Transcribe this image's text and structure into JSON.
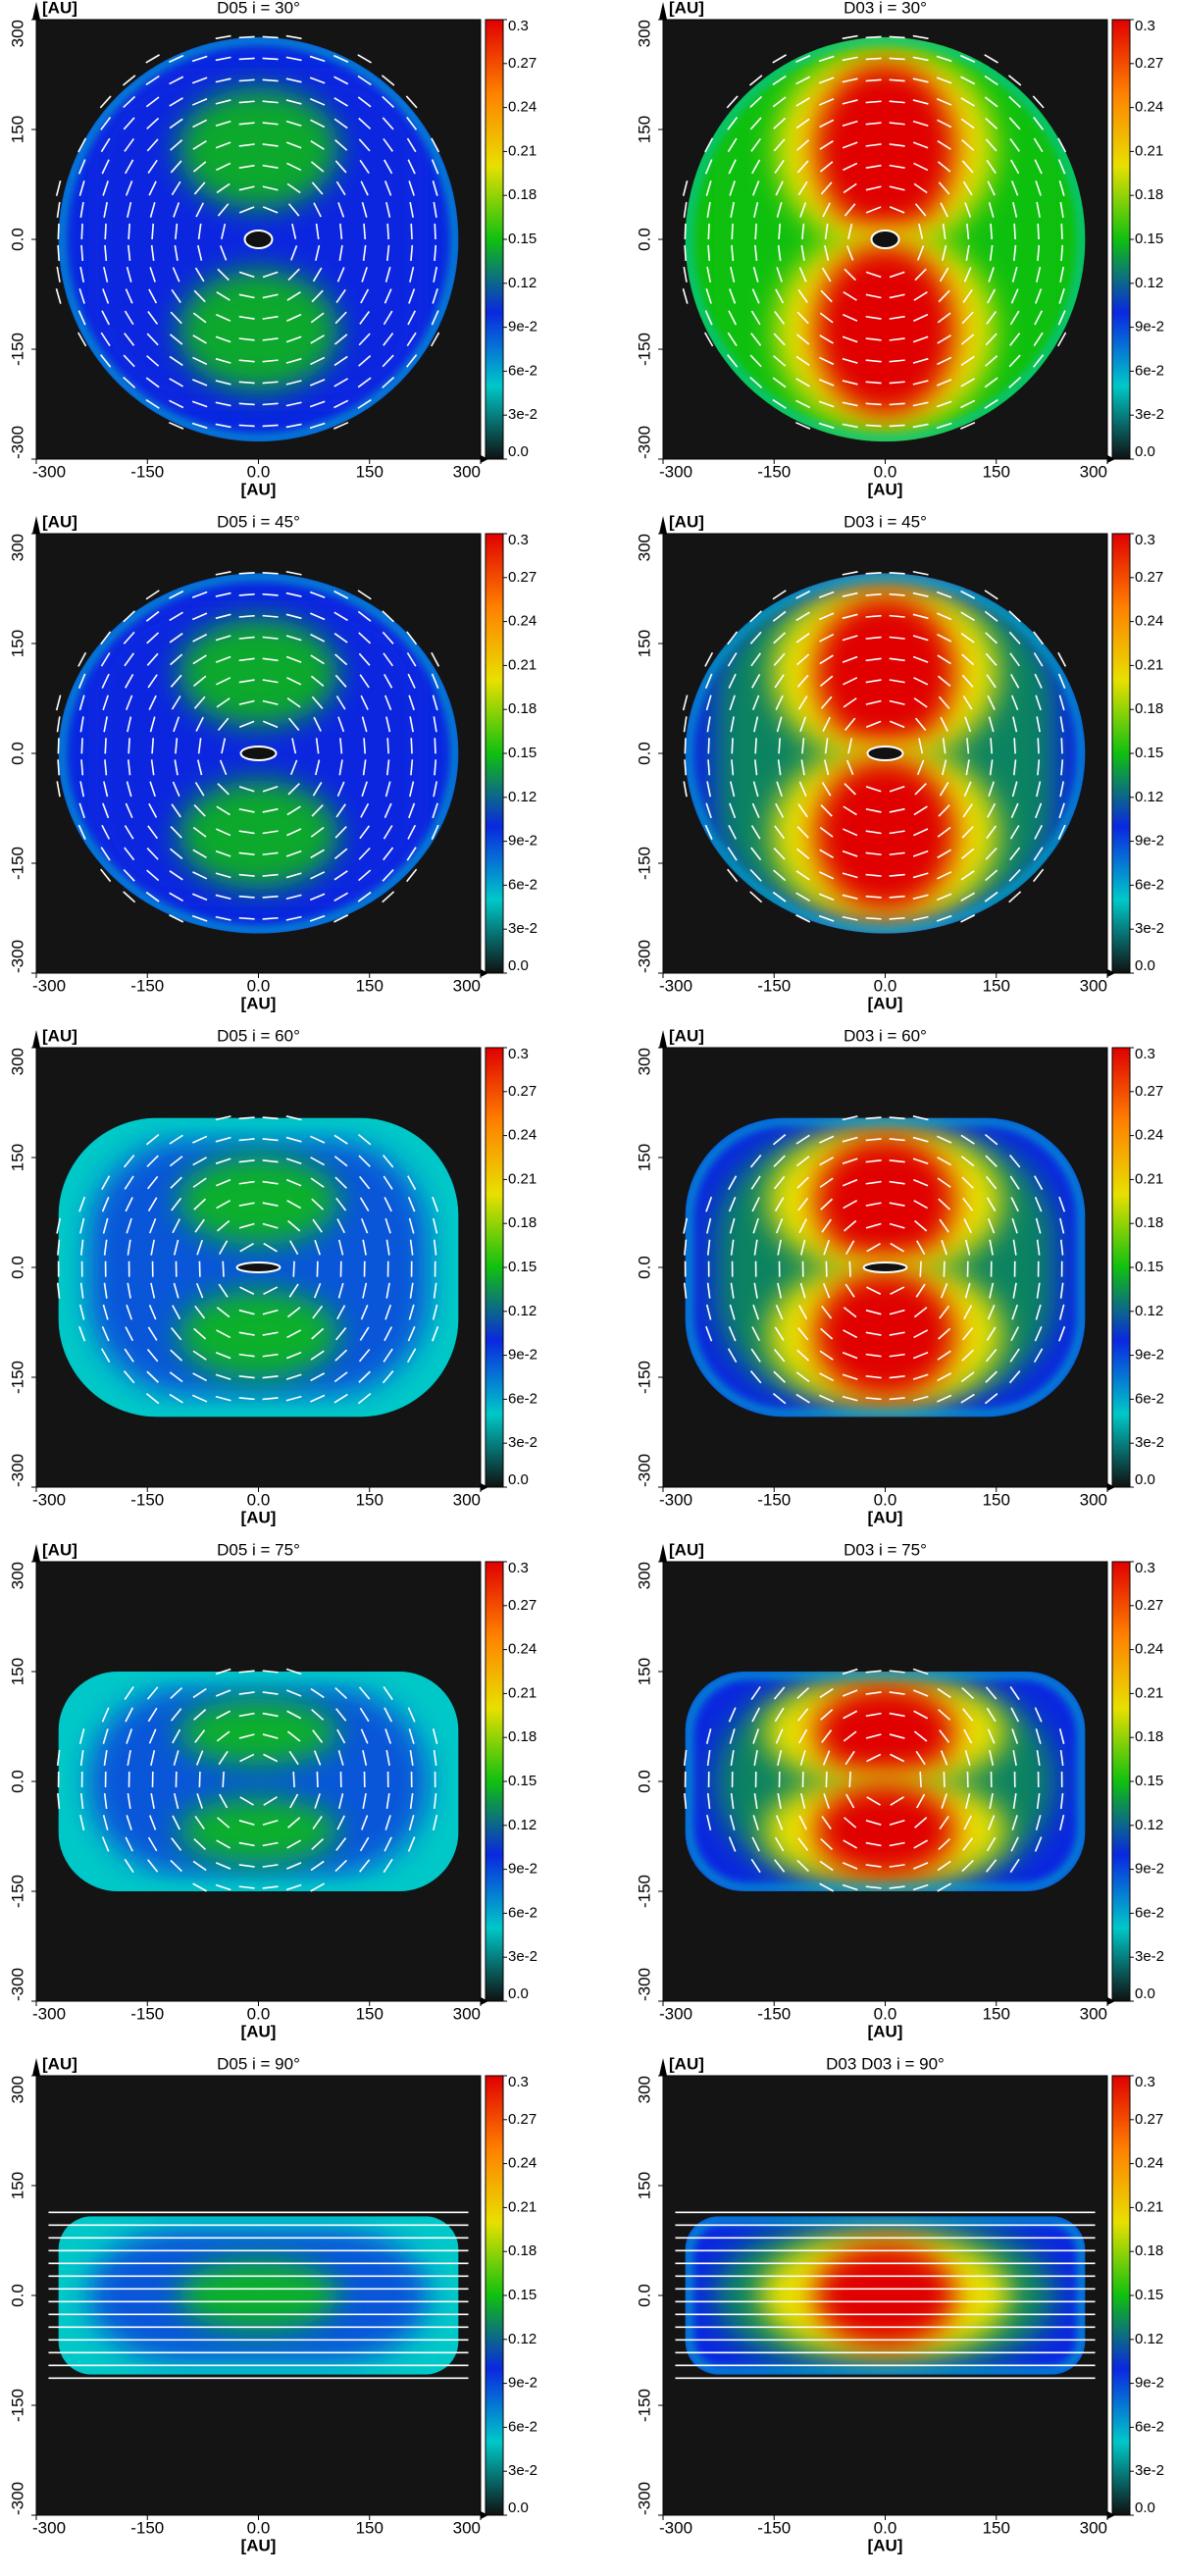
{
  "chart_data": [
    {
      "type": "heatmap",
      "title": "D05 i = 30°",
      "xlabel": "[AU]",
      "ylabel": "[AU]",
      "xlim": [
        -300,
        300
      ],
      "ylim": [
        -300,
        300
      ],
      "xticks": [
        -300,
        -150,
        {
          "value": 0,
          "label": "0.0"
        },
        150,
        300
      ],
      "yticks": [
        -300,
        -150,
        {
          "value": 0,
          "label": "0.0"
        },
        150,
        300
      ],
      "clim": [
        0,
        0.3
      ],
      "cticks": [
        {
          "value": 0,
          "label": "0.0"
        },
        {
          "value": 0.03,
          "label": "3e-2"
        },
        {
          "value": 0.06,
          "label": "6e-2"
        },
        {
          "value": 0.09,
          "label": "9e-2"
        },
        0.12,
        0.15,
        0.18,
        0.21,
        0.24,
        0.27,
        0.3
      ],
      "colormap": [
        "#101010",
        "#00c8c8",
        "#0a28e0",
        "#10c010",
        "#e8e000",
        "#ff8000",
        "#e00000"
      ]
    },
    {
      "type": "heatmap",
      "title": "D03 i = 30°",
      "xlabel": "[AU]",
      "ylabel": "[AU]",
      "xlim": [
        -300,
        300
      ],
      "ylim": [
        -300,
        300
      ],
      "xticks": [
        -300,
        -150,
        {
          "value": 0,
          "label": "0.0"
        },
        150,
        300
      ],
      "yticks": [
        -300,
        -150,
        {
          "value": 0,
          "label": "0.0"
        },
        150,
        300
      ],
      "clim": [
        0,
        0.3
      ],
      "cticks": [
        {
          "value": 0,
          "label": "0.0"
        },
        {
          "value": 0.03,
          "label": "3e-2"
        },
        {
          "value": 0.06,
          "label": "6e-2"
        },
        {
          "value": 0.09,
          "label": "9e-2"
        },
        0.12,
        0.15,
        0.18,
        0.21,
        0.24,
        0.27,
        0.3
      ],
      "colormap": [
        "#101010",
        "#00c8c8",
        "#0a28e0",
        "#10c010",
        "#e8e000",
        "#ff8000",
        "#e00000"
      ]
    },
    {
      "type": "heatmap",
      "title": "D05 i = 45°",
      "xlabel": "[AU]",
      "ylabel": "[AU]",
      "xlim": [
        -300,
        300
      ],
      "ylim": [
        -300,
        300
      ],
      "xticks": [
        -300,
        -150,
        {
          "value": 0,
          "label": "0.0"
        },
        150,
        300
      ],
      "yticks": [
        -300,
        -150,
        {
          "value": 0,
          "label": "0.0"
        },
        150,
        300
      ],
      "clim": [
        0,
        0.3
      ],
      "cticks": [
        {
          "value": 0,
          "label": "0.0"
        },
        {
          "value": 0.03,
          "label": "3e-2"
        },
        {
          "value": 0.06,
          "label": "6e-2"
        },
        {
          "value": 0.09,
          "label": "9e-2"
        },
        0.12,
        0.15,
        0.18,
        0.21,
        0.24,
        0.27,
        0.3
      ],
      "colormap": [
        "#101010",
        "#00c8c8",
        "#0a28e0",
        "#10c010",
        "#e8e000",
        "#ff8000",
        "#e00000"
      ]
    },
    {
      "type": "heatmap",
      "title": "D03 i = 45°",
      "xlabel": "[AU]",
      "ylabel": "[AU]",
      "xlim": [
        -300,
        300
      ],
      "ylim": [
        -300,
        300
      ],
      "xticks": [
        -300,
        -150,
        {
          "value": 0,
          "label": "0.0"
        },
        150,
        300
      ],
      "yticks": [
        -300,
        -150,
        {
          "value": 0,
          "label": "0.0"
        },
        150,
        300
      ],
      "clim": [
        0,
        0.3
      ],
      "cticks": [
        {
          "value": 0,
          "label": "0.0"
        },
        {
          "value": 0.03,
          "label": "3e-2"
        },
        {
          "value": 0.06,
          "label": "6e-2"
        },
        {
          "value": 0.09,
          "label": "9e-2"
        },
        0.12,
        0.15,
        0.18,
        0.21,
        0.24,
        0.27,
        0.3
      ],
      "colormap": [
        "#101010",
        "#00c8c8",
        "#0a28e0",
        "#10c010",
        "#e8e000",
        "#ff8000",
        "#e00000"
      ]
    },
    {
      "type": "heatmap",
      "title": "D05 i = 60°",
      "xlabel": "[AU]",
      "ylabel": "[AU]",
      "xlim": [
        -300,
        300
      ],
      "ylim": [
        -300,
        300
      ],
      "xticks": [
        -300,
        -150,
        {
          "value": 0,
          "label": "0.0"
        },
        150,
        300
      ],
      "yticks": [
        -300,
        -150,
        {
          "value": 0,
          "label": "0.0"
        },
        150,
        300
      ],
      "clim": [
        0,
        0.3
      ],
      "cticks": [
        {
          "value": 0,
          "label": "0.0"
        },
        {
          "value": 0.03,
          "label": "3e-2"
        },
        {
          "value": 0.06,
          "label": "6e-2"
        },
        {
          "value": 0.09,
          "label": "9e-2"
        },
        0.12,
        0.15,
        0.18,
        0.21,
        0.24,
        0.27,
        0.3
      ],
      "colormap": [
        "#101010",
        "#00c8c8",
        "#0a28e0",
        "#10c010",
        "#e8e000",
        "#ff8000",
        "#e00000"
      ]
    },
    {
      "type": "heatmap",
      "title": "D03 i = 60°",
      "xlabel": "[AU]",
      "ylabel": "[AU]",
      "xlim": [
        -300,
        300
      ],
      "ylim": [
        -300,
        300
      ],
      "xticks": [
        -300,
        -150,
        {
          "value": 0,
          "label": "0.0"
        },
        150,
        300
      ],
      "yticks": [
        -300,
        -150,
        {
          "value": 0,
          "label": "0.0"
        },
        150,
        300
      ],
      "clim": [
        0,
        0.3
      ],
      "cticks": [
        {
          "value": 0,
          "label": "0.0"
        },
        {
          "value": 0.03,
          "label": "3e-2"
        },
        {
          "value": 0.06,
          "label": "6e-2"
        },
        {
          "value": 0.09,
          "label": "9e-2"
        },
        0.12,
        0.15,
        0.18,
        0.21,
        0.24,
        0.27,
        0.3
      ],
      "colormap": [
        "#101010",
        "#00c8c8",
        "#0a28e0",
        "#10c010",
        "#e8e000",
        "#ff8000",
        "#e00000"
      ]
    },
    {
      "type": "heatmap",
      "title": "D05 i = 75°",
      "xlabel": "[AU]",
      "ylabel": "[AU]",
      "xlim": [
        -300,
        300
      ],
      "ylim": [
        -300,
        300
      ],
      "xticks": [
        -300,
        -150,
        {
          "value": 0,
          "label": "0.0"
        },
        150,
        300
      ],
      "yticks": [
        -300,
        -150,
        {
          "value": 0,
          "label": "0.0"
        },
        150,
        300
      ],
      "clim": [
        0,
        0.3
      ],
      "cticks": [
        {
          "value": 0,
          "label": "0.0"
        },
        {
          "value": 0.03,
          "label": "3e-2"
        },
        {
          "value": 0.06,
          "label": "6e-2"
        },
        {
          "value": 0.09,
          "label": "9e-2"
        },
        0.12,
        0.15,
        0.18,
        0.21,
        0.24,
        0.27,
        0.3
      ],
      "colormap": [
        "#101010",
        "#00c8c8",
        "#0a28e0",
        "#10c010",
        "#e8e000",
        "#ff8000",
        "#e00000"
      ]
    },
    {
      "type": "heatmap",
      "title": "D03 i = 75°",
      "xlabel": "[AU]",
      "ylabel": "[AU]",
      "xlim": [
        -300,
        300
      ],
      "ylim": [
        -300,
        300
      ],
      "xticks": [
        -300,
        -150,
        {
          "value": 0,
          "label": "0.0"
        },
        150,
        300
      ],
      "yticks": [
        -300,
        -150,
        {
          "value": 0,
          "label": "0.0"
        },
        150,
        300
      ],
      "clim": [
        0,
        0.3
      ],
      "cticks": [
        {
          "value": 0,
          "label": "0.0"
        },
        {
          "value": 0.03,
          "label": "3e-2"
        },
        {
          "value": 0.06,
          "label": "6e-2"
        },
        {
          "value": 0.09,
          "label": "9e-2"
        },
        0.12,
        0.15,
        0.18,
        0.21,
        0.24,
        0.27,
        0.3
      ],
      "colormap": [
        "#101010",
        "#00c8c8",
        "#0a28e0",
        "#10c010",
        "#e8e000",
        "#ff8000",
        "#e00000"
      ]
    },
    {
      "type": "heatmap",
      "title": "D05 i = 90°",
      "xlabel": "[AU]",
      "ylabel": "[AU]",
      "xlim": [
        -300,
        300
      ],
      "ylim": [
        -300,
        300
      ],
      "xticks": [
        -300,
        -150,
        {
          "value": 0,
          "label": "0.0"
        },
        150,
        300
      ],
      "yticks": [
        -300,
        -150,
        {
          "value": 0,
          "label": "0.0"
        },
        150,
        300
      ],
      "clim": [
        0,
        0.3
      ],
      "cticks": [
        {
          "value": 0,
          "label": "0.0"
        },
        {
          "value": 0.03,
          "label": "3e-2"
        },
        {
          "value": 0.06,
          "label": "6e-2"
        },
        {
          "value": 0.09,
          "label": "9e-2"
        },
        0.12,
        0.15,
        0.18,
        0.21,
        0.24,
        0.27,
        0.3
      ],
      "colormap": [
        "#101010",
        "#00c8c8",
        "#0a28e0",
        "#10c010",
        "#e8e000",
        "#ff8000",
        "#e00000"
      ]
    },
    {
      "type": "heatmap",
      "title": "D03 D03 i = 90°",
      "xlabel": "[AU]",
      "ylabel": "[AU]",
      "xlim": [
        -300,
        300
      ],
      "ylim": [
        -300,
        300
      ],
      "xticks": [
        -300,
        -150,
        {
          "value": 0,
          "label": "0.0"
        },
        150,
        300
      ],
      "yticks": [
        -300,
        -150,
        {
          "value": 0,
          "label": "0.0"
        },
        150,
        300
      ],
      "clim": [
        0,
        0.3
      ],
      "cticks": [
        {
          "value": 0,
          "label": "0.0"
        },
        {
          "value": 0.03,
          "label": "3e-2"
        },
        {
          "value": 0.06,
          "label": "6e-2"
        },
        {
          "value": 0.09,
          "label": "9e-2"
        },
        0.12,
        0.15,
        0.18,
        0.21,
        0.24,
        0.27,
        0.3
      ],
      "colormap": [
        "#101010",
        "#00c8c8",
        "#0a28e0",
        "#10c010",
        "#e8e000",
        "#ff8000",
        "#e00000"
      ]
    }
  ]
}
